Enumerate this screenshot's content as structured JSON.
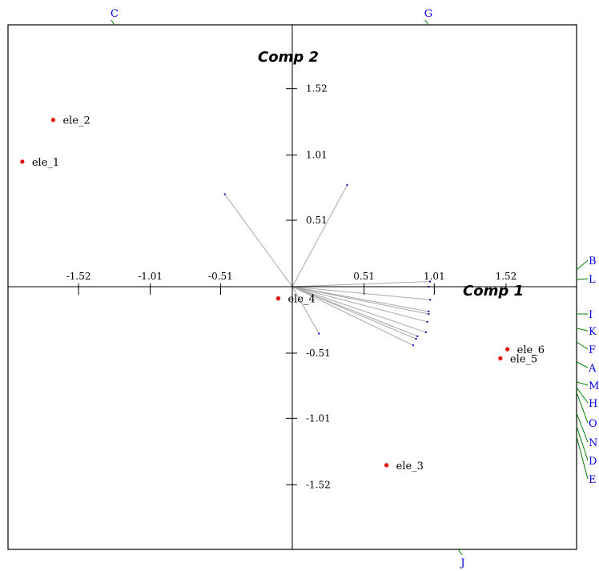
{
  "chart_data": {
    "type": "scatter",
    "title": "",
    "xlabel": "Comp 1",
    "ylabel": "Comp 2",
    "xlim": [
      -2.0,
      2.0
    ],
    "ylim": [
      -2.0,
      2.0
    ],
    "x_ticks": [
      {
        "value": -1.52,
        "label": "-1.52"
      },
      {
        "value": -1.01,
        "label": "-1.01"
      },
      {
        "value": -0.51,
        "label": "-0.51"
      },
      {
        "value": 0.51,
        "label": "0.51"
      },
      {
        "value": 1.01,
        "label": "1.01"
      },
      {
        "value": 1.52,
        "label": "1.52"
      }
    ],
    "y_ticks": [
      {
        "value": 1.52,
        "label": "1.52"
      },
      {
        "value": 1.01,
        "label": "1.01"
      },
      {
        "value": 0.51,
        "label": "0.51"
      },
      {
        "value": -0.51,
        "label": "-0.51"
      },
      {
        "value": -1.01,
        "label": "-1.01"
      },
      {
        "value": -1.52,
        "label": "-1.52"
      }
    ],
    "points": [
      {
        "name": "ele_1",
        "x": -1.92,
        "y": 0.96
      },
      {
        "name": "ele_2",
        "x": -1.7,
        "y": 1.28
      },
      {
        "name": "ele_3",
        "x": 0.67,
        "y": -1.37
      },
      {
        "name": "ele_4",
        "x": -0.1,
        "y": -0.09
      },
      {
        "name": "ele_5",
        "x": 1.48,
        "y": -0.55
      },
      {
        "name": "ele_6",
        "x": 1.53,
        "y": -0.48
      }
    ],
    "point_color": "#e00000",
    "vectors": [
      {
        "x": -0.48,
        "y": 0.71
      },
      {
        "x": 0.39,
        "y": 0.78
      },
      {
        "x": 0.19,
        "y": -0.36
      },
      {
        "x": 0.98,
        "y": 0.04
      },
      {
        "x": 0.97,
        "y": 0.0
      },
      {
        "x": 0.98,
        "y": -0.1
      },
      {
        "x": 0.97,
        "y": -0.19
      },
      {
        "x": 0.97,
        "y": -0.21
      },
      {
        "x": 0.96,
        "y": -0.27
      },
      {
        "x": 0.95,
        "y": -0.35
      },
      {
        "x": 0.89,
        "y": -0.38
      },
      {
        "x": 0.88,
        "y": -0.4
      },
      {
        "x": 0.86,
        "y": -0.45
      }
    ],
    "vector_color": "#a8a8a8",
    "variable_labels": {
      "top": [
        "C",
        "G"
      ],
      "right": [
        "B",
        "L",
        "I",
        "K",
        "F",
        "A",
        "M",
        "H",
        "O",
        "N",
        "D",
        "E"
      ],
      "bottom": [
        "J"
      ]
    },
    "variable_label_color": "#0000ee",
    "connector_color": "#008000",
    "grid": false
  }
}
